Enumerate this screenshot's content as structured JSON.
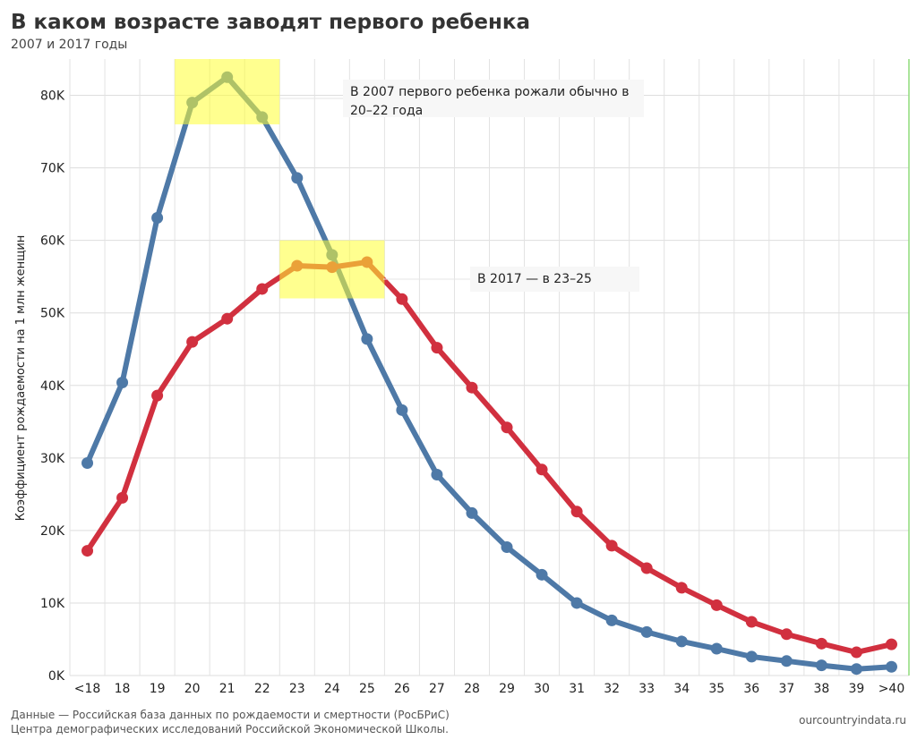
{
  "header": {
    "title": "В каком возрасте заводят первого ребенка",
    "subtitle": "2007 и 2017 годы"
  },
  "annotations": {
    "y2007": "В 2007 первого ребенка рожали обычно в 20–22 года",
    "y2017": "В 2017 — в 23–25"
  },
  "footer": {
    "source_line1": "Данные — Российская база данных по рождаемости и смертности (РосБРиС)",
    "source_line2": "Центра демографических исследований Российской Экономической Школы.",
    "site": "ourcountryindata.ru"
  },
  "chart_data": {
    "type": "line",
    "categories": [
      "<18",
      "18",
      "19",
      "20",
      "21",
      "22",
      "23",
      "24",
      "25",
      "26",
      "27",
      "28",
      "29",
      "30",
      "31",
      "32",
      "33",
      "34",
      "35",
      "36",
      "37",
      "38",
      "39",
      ">40"
    ],
    "ylabel": "Коэффициент рождаемости на 1 млн женщин",
    "ylim": [
      0,
      85000
    ],
    "yticks": [
      0,
      10000,
      20000,
      30000,
      40000,
      50000,
      60000,
      70000,
      80000
    ],
    "ytick_labels": [
      "0K",
      "10K",
      "20K",
      "30K",
      "40K",
      "50K",
      "60K",
      "70K",
      "80K"
    ],
    "grid": true,
    "series": [
      {
        "color": "#4e79a7",
        "values": [
          29300,
          40400,
          63100,
          79000,
          82500,
          77000,
          68600,
          58000,
          46400,
          36600,
          27700,
          22400,
          17700,
          13900,
          10000,
          7600,
          6000,
          4700,
          3700,
          2600,
          2000,
          1400,
          900,
          1200
        ]
      },
      {
        "color": "#d1303f",
        "values": [
          17200,
          24500,
          38600,
          46000,
          49200,
          53300,
          56500,
          56300,
          57000,
          51900,
          45200,
          39700,
          34200,
          28400,
          22600,
          17900,
          14800,
          12100,
          9700,
          7400,
          5700,
          4400,
          3200,
          4300
        ]
      }
    ],
    "highlights": [
      {
        "from": "20",
        "to": "22",
        "ymin": 76000,
        "ymax": 85000,
        "color": "#ffff33"
      },
      {
        "from": "23",
        "to": "25",
        "ymin": 52000,
        "ymax": 60000,
        "color": "#ffff33"
      }
    ]
  }
}
